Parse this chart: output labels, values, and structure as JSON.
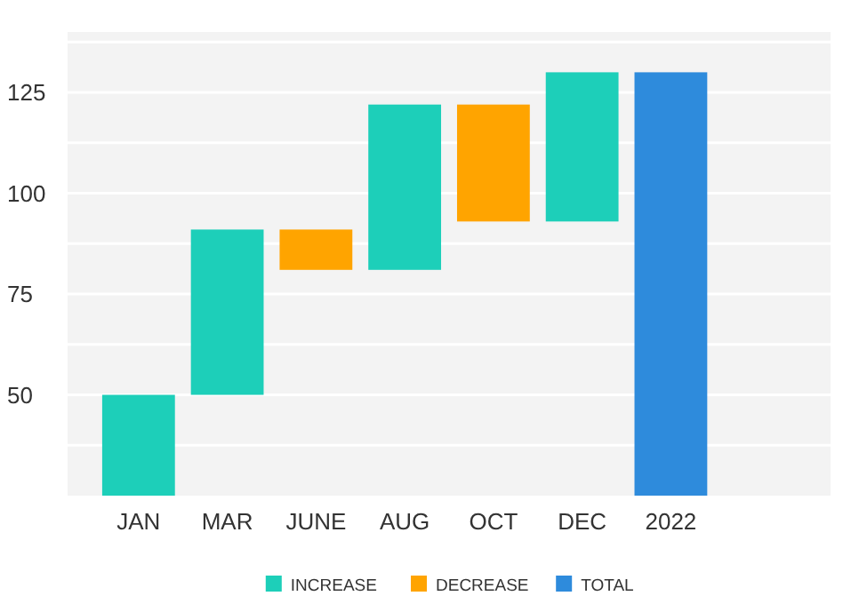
{
  "chart_data": {
    "type": "bar",
    "categories": [
      "JAN",
      "MAR",
      "JUNE",
      "AUG",
      "OCT",
      "DEC",
      "2022"
    ],
    "series": [
      {
        "name": "INCREASE",
        "color": "#1dcfb9",
        "base": [
          25,
          50,
          null,
          81,
          null,
          93,
          null
        ],
        "values": [
          25,
          41,
          null,
          41,
          null,
          37,
          null
        ]
      },
      {
        "name": "DECREASE",
        "color": "#ffa400",
        "base": [
          null,
          null,
          81,
          null,
          93,
          null,
          null
        ],
        "values": [
          null,
          null,
          10,
          null,
          29,
          null,
          null
        ]
      },
      {
        "name": "TOTAL",
        "color": "#2e8bdc",
        "base": [
          null,
          null,
          null,
          null,
          null,
          null,
          25
        ],
        "values": [
          null,
          null,
          null,
          null,
          null,
          null,
          105
        ]
      }
    ],
    "ylim": [
      25,
      140
    ],
    "yticks": [
      {
        "value": 37.5,
        "label": null
      },
      50,
      {
        "value": 62.5,
        "label": null
      },
      75,
      {
        "value": 87.5,
        "label": null
      },
      100,
      {
        "value": 112.5,
        "label": null
      },
      125,
      {
        "value": 137.5,
        "label": null
      }
    ],
    "grid": "y",
    "legend": "bottom"
  }
}
